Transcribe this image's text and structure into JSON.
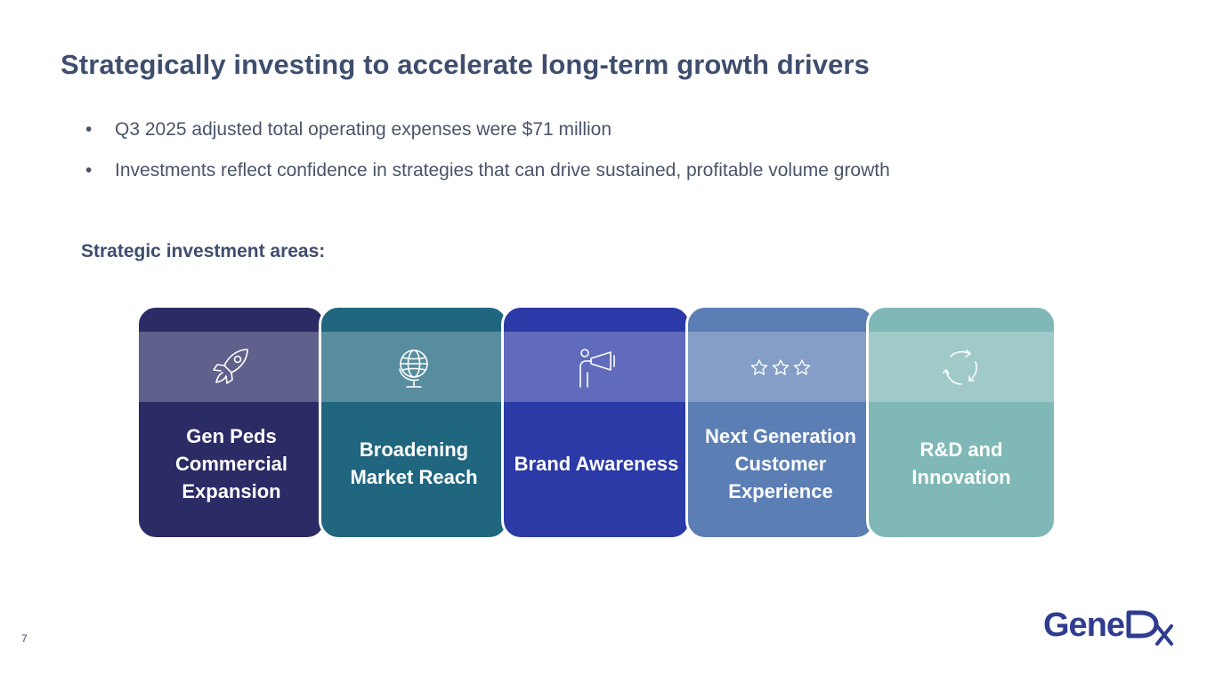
{
  "slide": {
    "title": "Strategically investing to accelerate long-term growth drivers",
    "bullet_symbol": "•",
    "bullets": [
      "Q3 2025 adjusted total operating expenses were $71 million",
      "Investments reflect confidence in strategies that can drive sustained, profitable volume growth"
    ],
    "subheading": "Strategic investment areas:",
    "page_number": "7"
  },
  "cards": [
    {
      "label": "Gen Peds Commercial Expansion",
      "icon": "rocket-icon",
      "color": "#2b2b66"
    },
    {
      "label": "Broadening Market Reach",
      "icon": "globe-icon",
      "color": "#21667f"
    },
    {
      "label": "Brand Awareness",
      "icon": "megaphone-person-icon",
      "color": "#2b3aa6"
    },
    {
      "label": "Next Generation Customer Experience",
      "icon": "three-stars-icon",
      "color": "#5b7eb5"
    },
    {
      "label": "R&D and Innovation",
      "icon": "cycle-arrows-icon",
      "color": "#7fb8b6"
    }
  ],
  "logo": {
    "text": "Gene",
    "mark": "Dx",
    "color": "#2f3c8f"
  },
  "colors": {
    "title": "#3f4e6e",
    "body_text": "#4a5468"
  }
}
